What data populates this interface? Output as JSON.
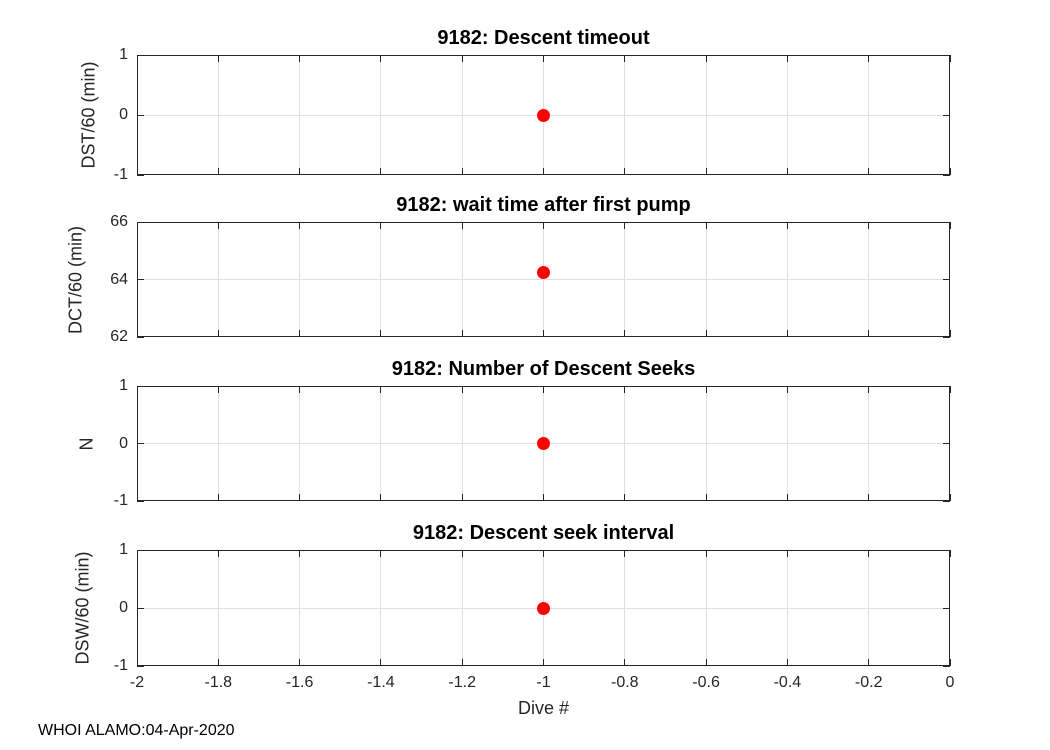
{
  "figure": {
    "footer": "WHOI ALAMO:04-Apr-2020",
    "float_id": "9182",
    "background_color": "#ffffff",
    "axis_color": "#262626",
    "grid_color": "#dfdfdf",
    "title_color": "#000000",
    "marker_color": "#ff0000"
  },
  "chart_data": [
    {
      "type": "scatter",
      "title": "9182: Descent timeout",
      "ylabel": "DST/60 (min)",
      "xlabel": "",
      "x": [
        -1
      ],
      "y": [
        0
      ],
      "xlim": [
        -2,
        0
      ],
      "ylim": [
        -1,
        1
      ],
      "xticks": [
        -2,
        -1.8,
        -1.6,
        -1.4,
        -1.2,
        -1,
        -0.8,
        -0.6,
        -0.4,
        -0.2,
        0
      ],
      "xticklabels": [],
      "yticks": [
        -1,
        0,
        1
      ],
      "yticklabels": [
        "-1",
        "0",
        "1"
      ],
      "grid": true,
      "legend": null,
      "marker": "filled-circle-red"
    },
    {
      "type": "scatter",
      "title": "9182: wait time after first pump",
      "ylabel": "DCT/60 (min)",
      "xlabel": "",
      "x": [
        -1
      ],
      "y": [
        64.25
      ],
      "xlim": [
        -2,
        0
      ],
      "ylim": [
        62,
        66
      ],
      "xticks": [
        -2,
        -1.8,
        -1.6,
        -1.4,
        -1.2,
        -1,
        -0.8,
        -0.6,
        -0.4,
        -0.2,
        0
      ],
      "xticklabels": [],
      "yticks": [
        62,
        64,
        66
      ],
      "yticklabels": [
        "62",
        "64",
        "66"
      ],
      "grid": true,
      "legend": null,
      "marker": "filled-circle-red"
    },
    {
      "type": "scatter",
      "title": "9182: Number of Descent Seeks",
      "ylabel": "N",
      "xlabel": "",
      "x": [
        -1
      ],
      "y": [
        0
      ],
      "xlim": [
        -2,
        0
      ],
      "ylim": [
        -1,
        1
      ],
      "xticks": [
        -2,
        -1.8,
        -1.6,
        -1.4,
        -1.2,
        -1,
        -0.8,
        -0.6,
        -0.4,
        -0.2,
        0
      ],
      "xticklabels": [],
      "yticks": [
        -1,
        0,
        1
      ],
      "yticklabels": [
        "-1",
        "0",
        "1"
      ],
      "grid": true,
      "legend": null,
      "marker": "filled-circle-red"
    },
    {
      "type": "scatter",
      "title": "9182: Descent seek interval",
      "ylabel": "DSW/60 (min)",
      "xlabel": "Dive #",
      "x": [
        -1
      ],
      "y": [
        0
      ],
      "xlim": [
        -2,
        0
      ],
      "ylim": [
        -1,
        1
      ],
      "xticks": [
        -2,
        -1.8,
        -1.6,
        -1.4,
        -1.2,
        -1,
        -0.8,
        -0.6,
        -0.4,
        -0.2,
        0
      ],
      "xticklabels": [
        "-2",
        "-1.8",
        "-1.6",
        "-1.4",
        "-1.2",
        "-1",
        "-0.8",
        "-0.6",
        "-0.4",
        "-0.2",
        "0"
      ],
      "yticks": [
        -1,
        0,
        1
      ],
      "yticklabels": [
        "-1",
        "0",
        "1"
      ],
      "grid": true,
      "legend": null,
      "marker": "filled-circle-red"
    }
  ]
}
